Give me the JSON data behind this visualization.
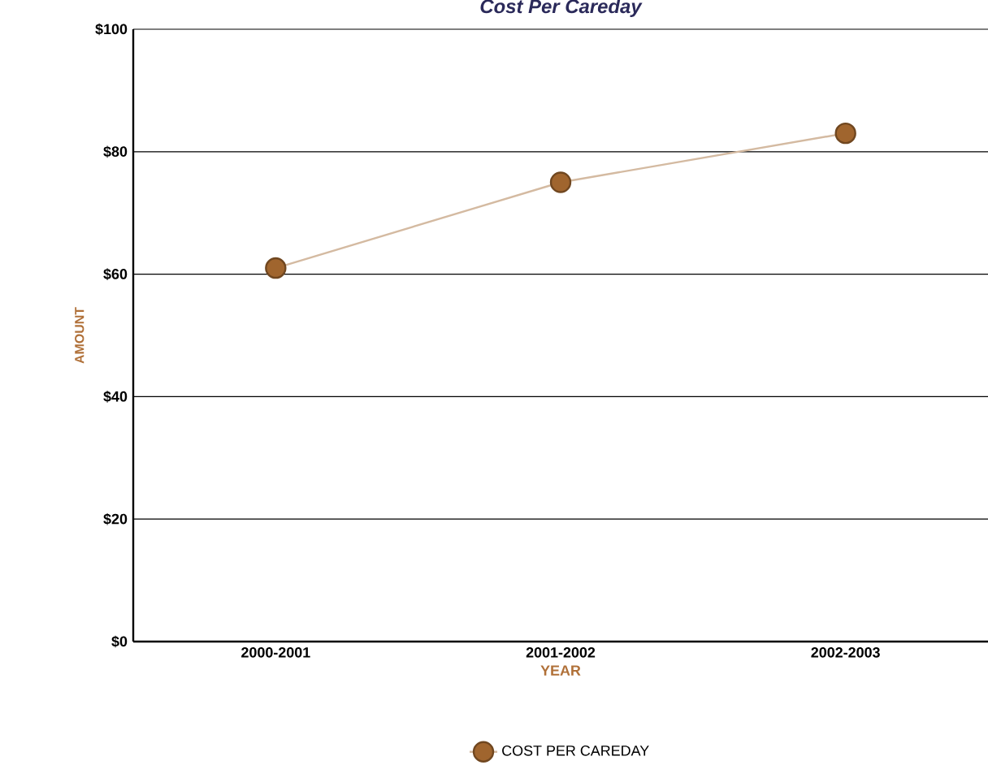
{
  "chart_data": {
    "type": "line",
    "title": "Cost Per Careday",
    "xlabel": "YEAR",
    "ylabel": "AMOUNT",
    "categories": [
      "2000-2001",
      "2001-2002",
      "2002-2003"
    ],
    "series": [
      {
        "name": "COST PER CAREDAY",
        "color": "#a0652e",
        "values": [
          61,
          75,
          83
        ]
      }
    ],
    "ylim": [
      0,
      100
    ],
    "yticks": [
      {
        "value": 0,
        "label": "$0"
      },
      {
        "value": 20,
        "label": "$20"
      },
      {
        "value": 40,
        "label": "$40"
      },
      {
        "value": 60,
        "label": "$60"
      },
      {
        "value": 80,
        "label": "$80"
      },
      {
        "value": 100,
        "label": "$100"
      }
    ],
    "grid": "y",
    "legend": "bottom",
    "marker": "circle",
    "line_style": "solid"
  }
}
